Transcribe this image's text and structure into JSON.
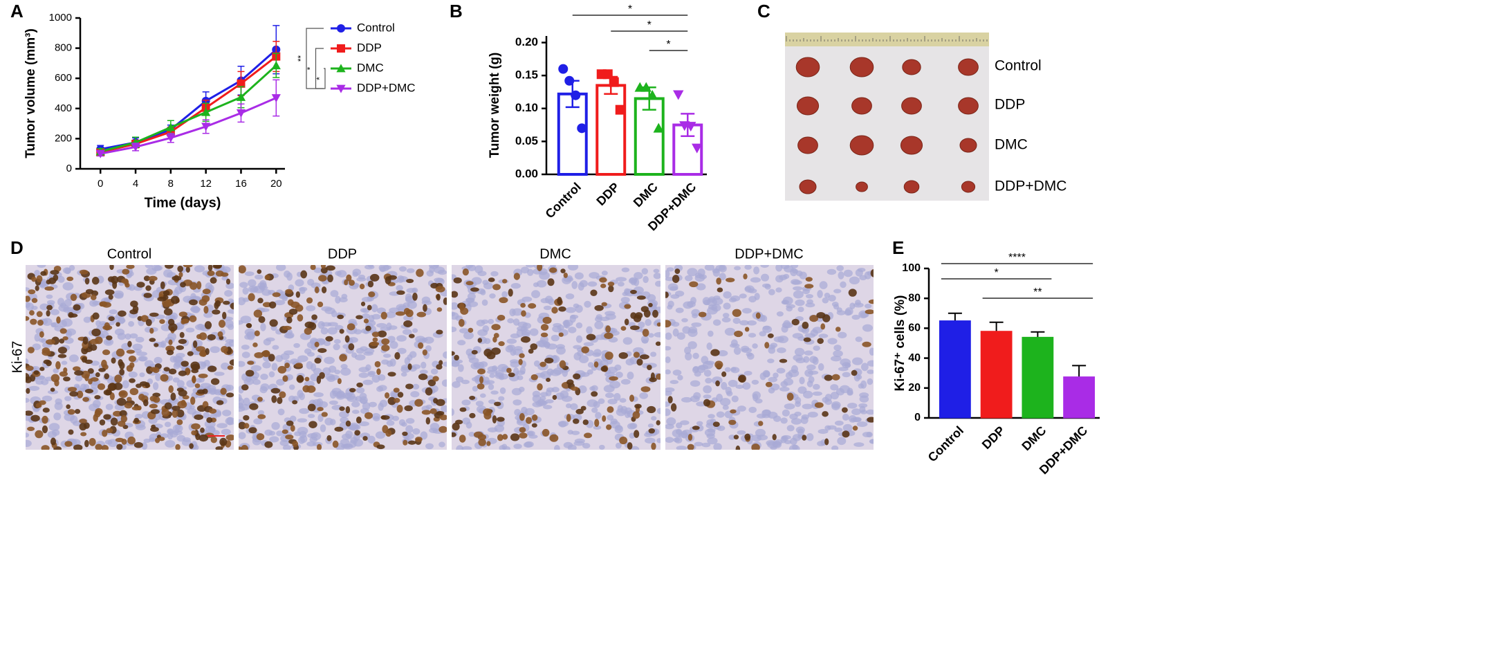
{
  "panel_labels": [
    "A",
    "B",
    "C",
    "D",
    "E"
  ],
  "chart_data": [
    {
      "type": "line",
      "xlabel": "Time (days)",
      "ylabel": "Tumor volume (mm³)",
      "x": [
        0,
        4,
        8,
        12,
        16,
        20
      ],
      "xlim": [
        -2.3,
        21
      ],
      "xticks": [
        0,
        4,
        8,
        12,
        16,
        20
      ],
      "ylim": [
        0,
        1000
      ],
      "yticks": [
        0,
        200,
        400,
        600,
        800,
        1000
      ],
      "series": [
        {
          "name": "Control",
          "color": "#1f1fe6",
          "marker": "circle",
          "values": [
            130,
            175,
            260,
            450,
            585,
            790
          ],
          "errors": [
            25,
            30,
            30,
            60,
            95,
            160
          ]
        },
        {
          "name": "DDP",
          "color": "#f01c1c",
          "marker": "square",
          "values": [
            110,
            165,
            245,
            405,
            565,
            745
          ],
          "errors": [
            20,
            25,
            30,
            50,
            80,
            100
          ]
        },
        {
          "name": "DMC",
          "color": "#1db31d",
          "marker": "triangle",
          "values": [
            115,
            175,
            275,
            375,
            475,
            685
          ],
          "errors": [
            20,
            35,
            45,
            60,
            70,
            80
          ]
        },
        {
          "name": "DDP+DMC",
          "color": "#a92ce6",
          "marker": "triangle-down",
          "values": [
            100,
            145,
            205,
            280,
            370,
            470
          ],
          "errors": [
            15,
            25,
            30,
            45,
            60,
            120
          ]
        }
      ],
      "significance": [
        {
          "label": "**",
          "pair": [
            0,
            3
          ]
        },
        {
          "label": "*",
          "pair": [
            1,
            3
          ]
        },
        {
          "label": "*",
          "pair": [
            2,
            3
          ]
        }
      ]
    },
    {
      "type": "bar-points",
      "ylabel": "Tumor weight (g)",
      "categories": [
        "Control",
        "DDP",
        "DMC",
        "DDP+DMC"
      ],
      "values": [
        0.122,
        0.135,
        0.115,
        0.075
      ],
      "errors": [
        0.02,
        0.013,
        0.017,
        0.017
      ],
      "points": [
        [
          0.16,
          0.142,
          0.12,
          0.07
        ],
        [
          0.152,
          0.152,
          0.14,
          0.098
        ],
        [
          0.132,
          0.132,
          0.12,
          0.07
        ],
        [
          0.121,
          0.074,
          0.073,
          0.04
        ]
      ],
      "colors": [
        "#1f1fe6",
        "#f01c1c",
        "#1db31d",
        "#a92ce6"
      ],
      "markers": [
        "circle",
        "square",
        "triangle",
        "triangle-down"
      ],
      "ylim": [
        0,
        0.21
      ],
      "yticks": [
        {
          "value": 0,
          "label": "0.00"
        },
        {
          "value": 0.05,
          "label": "0.05"
        },
        {
          "value": 0.1,
          "label": "0.10"
        },
        {
          "value": 0.15,
          "label": "0.15"
        },
        {
          "value": 0.2,
          "label": "0.20"
        }
      ],
      "significance": [
        {
          "label": "*",
          "pair": [
            0,
            3
          ]
        },
        {
          "label": "*",
          "pair": [
            1,
            3
          ]
        },
        {
          "label": "*",
          "pair": [
            2,
            3
          ]
        }
      ]
    },
    {
      "type": "bar",
      "ylabel": "Ki-67⁺ cells (%)",
      "categories": [
        "Control",
        "DDP",
        "DMC",
        "DDP+DMC"
      ],
      "values": [
        65,
        58,
        54,
        27.5
      ],
      "errors": [
        5,
        6,
        3.5,
        7.5
      ],
      "colors": [
        "#1f1fe6",
        "#f01c1c",
        "#1db31d",
        "#a92ce6"
      ],
      "ylim": [
        0,
        100
      ],
      "yticks": [
        0,
        20,
        40,
        60,
        80,
        100
      ],
      "significance": [
        {
          "label": "****",
          "pair": [
            0,
            3
          ]
        },
        {
          "label": "*",
          "pair": [
            0,
            2
          ]
        },
        {
          "label": "**",
          "pair": [
            1,
            3
          ]
        }
      ]
    }
  ],
  "photo": {
    "rows": [
      "Control",
      "DDP",
      "DMC",
      "DDP+DMC"
    ]
  },
  "micrographs": {
    "columns": [
      "Control",
      "DDP",
      "DMC",
      "DDP+DMC"
    ],
    "row_label": "Ki-67"
  }
}
